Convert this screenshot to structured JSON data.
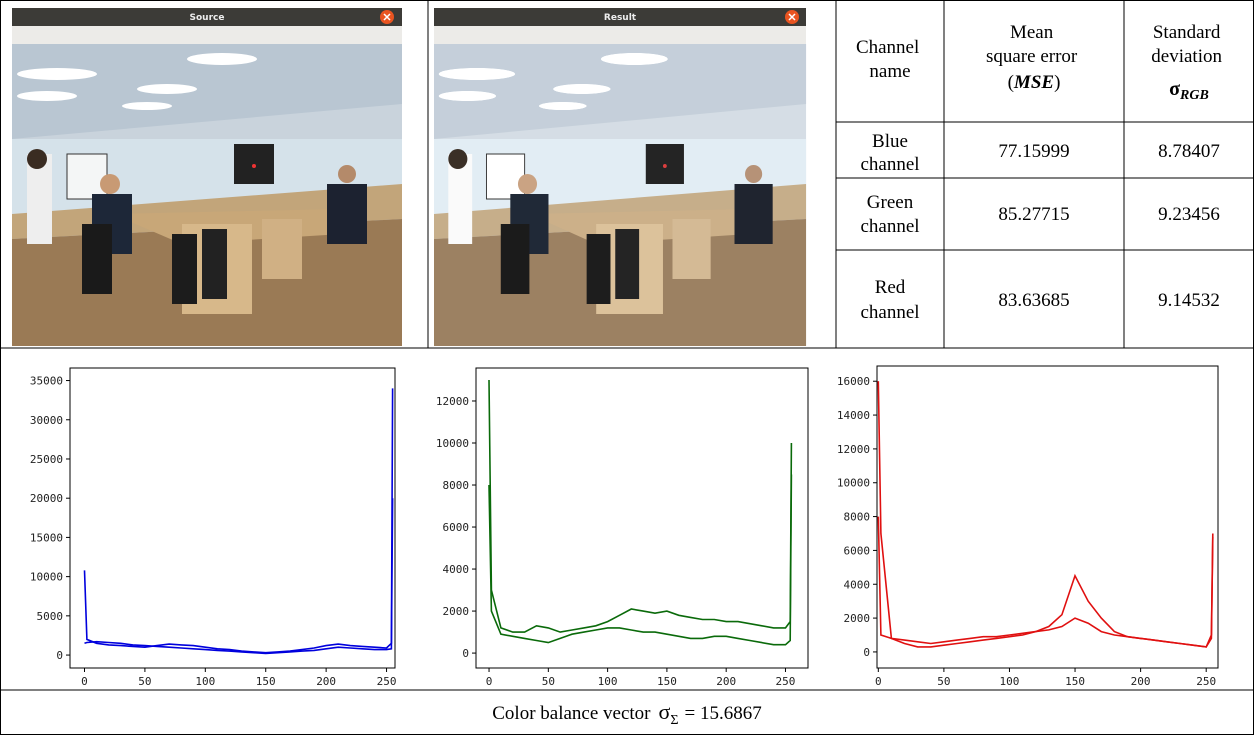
{
  "windows": [
    {
      "title": "Source"
    },
    {
      "title": "Result"
    }
  ],
  "table": {
    "header": [
      {
        "lines": [
          "Channel",
          "name"
        ]
      },
      {
        "lines": [
          "Mean",
          "square error"
        ],
        "open": "(",
        "emph": "MSE",
        "close": ")"
      },
      {
        "lines": [
          "Standard",
          "deviation"
        ],
        "symbol": "σ",
        "sub": "RGB"
      }
    ],
    "rows": [
      [
        [
          "Blue",
          "channel"
        ],
        "77.15999",
        "8.78407"
      ],
      [
        [
          "Green",
          "channel"
        ],
        "85.27715",
        "9.23456"
      ],
      [
        [
          "Red",
          "channel"
        ],
        "83.63685",
        "9.14532"
      ]
    ]
  },
  "chart_data": [
    {
      "type": "line",
      "xlim": [
        -12,
        257
      ],
      "ylim": [
        -1650,
        36600
      ],
      "xticks": [
        0,
        50,
        100,
        150,
        200,
        250
      ],
      "yticks": [
        0,
        5000,
        10000,
        15000,
        20000,
        25000,
        30000,
        35000
      ],
      "x": [
        0,
        2,
        10,
        20,
        30,
        40,
        50,
        60,
        70,
        80,
        90,
        100,
        110,
        120,
        130,
        140,
        150,
        160,
        170,
        180,
        190,
        200,
        210,
        220,
        230,
        240,
        250,
        254,
        255
      ],
      "series": [
        {
          "color": "#0000dd",
          "values": [
            10800,
            2000,
            1500,
            1300,
            1200,
            1100,
            1000,
            1200,
            1400,
            1300,
            1200,
            1000,
            800,
            700,
            500,
            400,
            300,
            400,
            500,
            700,
            900,
            1200,
            1400,
            1200,
            1100,
            1000,
            900,
            1500,
            34000
          ]
        },
        {
          "color": "#0000dd",
          "values": [
            1500,
            1600,
            1700,
            1600,
            1500,
            1300,
            1200,
            1100,
            1000,
            900,
            800,
            700,
            600,
            500,
            400,
            300,
            200,
            300,
            400,
            500,
            600,
            800,
            1000,
            900,
            800,
            700,
            700,
            800,
            20000
          ]
        }
      ]
    },
    {
      "type": "line",
      "xlim": [
        -11,
        269
      ],
      "ylim": [
        -710,
        13570
      ],
      "xticks": [
        0,
        50,
        100,
        150,
        200,
        250
      ],
      "yticks": [
        0,
        2000,
        4000,
        6000,
        8000,
        10000,
        12000
      ],
      "x": [
        0,
        2,
        10,
        20,
        30,
        40,
        50,
        60,
        70,
        80,
        90,
        100,
        110,
        120,
        130,
        140,
        150,
        160,
        170,
        180,
        190,
        200,
        210,
        220,
        230,
        240,
        250,
        254,
        255
      ],
      "series": [
        {
          "color": "#0a6a0a",
          "values": [
            13000,
            3000,
            1200,
            1000,
            1000,
            1300,
            1200,
            1000,
            1100,
            1200,
            1300,
            1500,
            1800,
            2100,
            2000,
            1900,
            2000,
            1800,
            1700,
            1600,
            1600,
            1500,
            1500,
            1400,
            1300,
            1200,
            1200,
            1500,
            10000
          ]
        },
        {
          "color": "#0a6a0a",
          "values": [
            8000,
            2000,
            900,
            800,
            700,
            600,
            500,
            700,
            900,
            1000,
            1100,
            1200,
            1200,
            1100,
            1000,
            1000,
            900,
            800,
            700,
            700,
            800,
            800,
            700,
            600,
            500,
            400,
            400,
            600,
            8500
          ]
        }
      ]
    },
    {
      "type": "line",
      "xlim": [
        -1,
        259
      ],
      "ylim": [
        -950,
        16900
      ],
      "xticks": [
        0,
        50,
        100,
        150,
        200,
        250
      ],
      "yticks": [
        0,
        2000,
        4000,
        6000,
        8000,
        10000,
        12000,
        14000,
        16000
      ],
      "x": [
        0,
        2,
        10,
        20,
        30,
        40,
        50,
        60,
        70,
        80,
        90,
        100,
        110,
        120,
        130,
        140,
        150,
        160,
        170,
        180,
        190,
        200,
        210,
        220,
        230,
        240,
        250,
        254,
        255
      ],
      "series": [
        {
          "color": "#e01010",
          "values": [
            16000,
            7000,
            800,
            500,
            300,
            300,
            400,
            500,
            600,
            700,
            800,
            900,
            1000,
            1200,
            1500,
            2200,
            4500,
            3000,
            2000,
            1200,
            900,
            800,
            700,
            600,
            500,
            400,
            300,
            1000,
            7000
          ]
        },
        {
          "color": "#e01010",
          "values": [
            8000,
            1000,
            800,
            700,
            600,
            500,
            600,
            700,
            800,
            900,
            900,
            1000,
            1100,
            1200,
            1300,
            1500,
            2000,
            1700,
            1200,
            1000,
            900,
            800,
            700,
            600,
            500,
            400,
            300,
            800,
            6800
          ]
        }
      ]
    }
  ],
  "caption": {
    "label": "Color balance vector",
    "symbol": "σ",
    "sub": "Σ",
    "value": "= 15.6867"
  }
}
